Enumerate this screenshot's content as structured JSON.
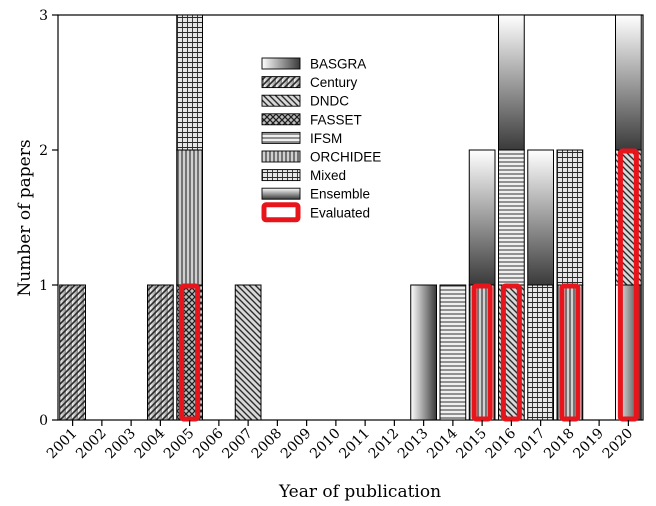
{
  "chart_data": {
    "type": "bar",
    "stacked": true,
    "title": "",
    "xlabel": "Year of publication",
    "ylabel": "Number of papers",
    "ylim": [
      0,
      3
    ],
    "yticks": [
      "0",
      "1",
      "2",
      "3"
    ],
    "categories": [
      "2001",
      "2002",
      "2003",
      "2004",
      "2005",
      "2006",
      "2007",
      "2008",
      "2009",
      "2010",
      "2011",
      "2012",
      "2013",
      "2014",
      "2015",
      "2016",
      "2017",
      "2018",
      "2019",
      "2020"
    ],
    "series": [
      {
        "name": "BASGRA",
        "pattern": "gradient-h",
        "values": [
          0,
          0,
          0,
          0,
          0,
          0,
          0,
          0,
          0,
          0,
          0,
          0,
          1,
          0,
          0,
          0,
          0,
          0,
          0,
          1
        ]
      },
      {
        "name": "Century",
        "pattern": "diag-right",
        "values": [
          1,
          0,
          0,
          1,
          0,
          0,
          0,
          0,
          0,
          0,
          0,
          0,
          0,
          0,
          0,
          0,
          0,
          0,
          0,
          0
        ]
      },
      {
        "name": "DNDC",
        "pattern": "diag-left",
        "values": [
          0,
          0,
          0,
          0,
          0,
          0,
          1,
          0,
          0,
          0,
          0,
          0,
          0,
          0,
          0,
          1,
          0,
          0,
          0,
          1
        ]
      },
      {
        "name": "FASSET",
        "pattern": "crosshatch",
        "values": [
          0,
          0,
          0,
          0,
          1,
          0,
          0,
          0,
          0,
          0,
          0,
          0,
          0,
          0,
          0,
          0,
          0,
          0,
          0,
          0
        ]
      },
      {
        "name": "IFSM",
        "pattern": "horizontal",
        "values": [
          0,
          0,
          0,
          0,
          0,
          0,
          0,
          0,
          0,
          0,
          0,
          0,
          0,
          1,
          0,
          1,
          0,
          0,
          0,
          0
        ]
      },
      {
        "name": "ORCHIDEE",
        "pattern": "vertical",
        "values": [
          0,
          0,
          0,
          0,
          1,
          0,
          0,
          0,
          0,
          0,
          0,
          0,
          0,
          0,
          1,
          0,
          0,
          1,
          0,
          0
        ]
      },
      {
        "name": "Mixed",
        "pattern": "grid",
        "values": [
          0,
          0,
          0,
          0,
          1,
          0,
          0,
          0,
          0,
          0,
          0,
          0,
          0,
          0,
          0,
          0,
          1,
          1,
          0,
          0
        ]
      },
      {
        "name": "Ensemble",
        "pattern": "gradient-v",
        "values": [
          0,
          0,
          0,
          0,
          0,
          0,
          0,
          0,
          0,
          0,
          0,
          0,
          0,
          0,
          1,
          1,
          1,
          0,
          0,
          1
        ]
      }
    ],
    "evaluated": {
      "name": "Evaluated",
      "color": "#e8141b",
      "values": [
        0,
        0,
        0,
        0,
        1,
        0,
        0,
        0,
        0,
        0,
        0,
        0,
        0,
        0,
        1,
        1,
        0,
        1,
        0,
        2
      ]
    },
    "legend_position": "top-center",
    "grid": false
  }
}
